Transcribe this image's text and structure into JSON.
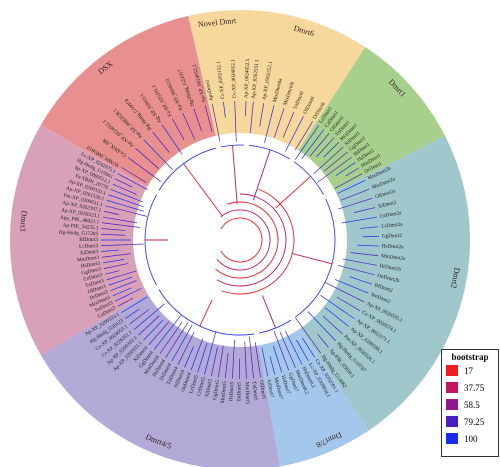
{
  "clades": [
    {
      "name": "DSX",
      "color": "#e8908f",
      "label_color": "#2a1f1f"
    },
    {
      "name": "Novel Dmrt",
      "color": "#f7d89c",
      "label_color": "#2a1f1f"
    },
    {
      "name": "Dmrt6",
      "color": "#f7d89c",
      "label_color": "#2a1f1f"
    },
    {
      "name": "Dmrt1",
      "color": "#a8d08d",
      "label_color": "#2a1f1f"
    },
    {
      "name": "Dmrt2",
      "color": "#9fc7cc",
      "label_color": "#2a1f1f"
    },
    {
      "name": "Dmrt7/8",
      "color": "#a4c8ec",
      "label_color": "#2a1f1f"
    },
    {
      "name": "Dmrt4/5",
      "color": "#b2a9d6",
      "label_color": "#2a1f1f"
    },
    {
      "name": "Dmrt3",
      "color": "#d9a1b8",
      "label_color": "#2a1f1f"
    }
  ],
  "leaf_groups": [
    [
      "SUMPI_0005810",
      "Ce-DSX_HR",
      "Ap-XP_0024052.1",
      "Ap-XP_0082028.1",
      "Hg-Hmlg_G19974",
      "Ag-XP_02063.1",
      "Fa-XP_025181.1",
      "Ap-XP_0028531",
      "Hg-Hmlg_G22317",
      "Ap-XP_0024052.2"
    ],
    [
      "ApsDmrt1",
      "Cr-XP_0263152.1",
      "Ce-XP_0024052.1",
      "Ap-XP_0024052.5"
    ],
    [
      "Ap-XP_0262551.1",
      "Ap-XP_0262552.1",
      "MixDmrt6a",
      "MixDmrt6b",
      "TnDmrt6",
      "OlDmrt6",
      "DrDmrt6"
    ],
    [
      "LcDmrt1",
      "CaDmrt1",
      "OlDmrt1",
      "TnDmrt1",
      "MixDmrt1",
      "XiDmrt1",
      "GgDmrt1",
      "ShDmrt1",
      "HsDmrt1",
      "MmDmrt1",
      "DrDmrt1"
    ],
    [
      "MixDmrt2b",
      "MixDmrt2a",
      "OlDmrt2a",
      "XiDmrt2",
      "CeDmrt2a",
      "LcDmrt2a",
      "GgDmrt2",
      "HsDmrt2a",
      "MmDmrt2a",
      "DrDmrt2b",
      "OnDmrt2b",
      "BfDmrt2",
      "SmDmrt2",
      "Ap-XP_0026595.1",
      "Ce-XP_0020574.1",
      "Ap-XP_0052171.1",
      "Ap-XP_0200598.1",
      "Pm-XP_0026526.1",
      "Hg-Hmlg_G10747",
      "Ap-PIK_05830.1",
      "Hg-Hmlg_G14862"
    ],
    [
      "Ce-XP_0202591.1",
      "Lc-XP_0209834.1",
      "HsDmrt8.2",
      "MmDmrt8.2",
      "GgDmrt7",
      "HsDmrt7",
      "MmDmrt7",
      "XiDmrt7"
    ],
    [
      "OlDmrt5",
      "TnDmrt5",
      "MixDmrt5",
      "DrDmrt5",
      "HsDmrt5",
      "MmDmrt5",
      "GgDmrt5",
      "XiDmrt5",
      "CeDmrt5",
      "LcDmrt5",
      "OnDmrt4",
      "OlDmrt4",
      "TnDmrt4",
      "DrDmrt4",
      "HsDmrt4",
      "MmDmrt4",
      "GgDmrt4",
      "XiDmrt4",
      "Ap-XP_0200331.1",
      "Ap-XP_0200332.1",
      "Cr-XP_0226351.1",
      "Ce-XP_0024053.1",
      "Hg-Hmlg_G20123",
      "Ap-XP_0200333.1"
    ],
    [
      "CaDmrt3",
      "SoDmrt3",
      "MixDmrt3",
      "DrDmrt3",
      "OlDmrt3",
      "TnDmrt3",
      "CeDmrt3",
      "GgDmrt3",
      "HsDmrt3",
      "MmDmrt3",
      "XiDmrt3",
      "LcDmrt3",
      "BfDmrt3",
      "Hg-Hmlg_G17285",
      "Ap-PIK_54235.1",
      "App_PIK_48021.1",
      "Ap-XP_0269523.1",
      "Ap-XP_0262397.1",
      "Pm-XP_0200631.1",
      "Ap-XP_0261550.1",
      "Ap-XP_0200332.1",
      "Fa-TRIN_20770",
      "Sp-XP_0809512.1",
      "Hg-Hmlg_G19961",
      "Lc-XP_0242975.1"
    ]
  ],
  "legend": {
    "title": "bootstrap",
    "items": [
      {
        "label": "17",
        "color": "#ee1d23"
      },
      {
        "label": "37.75",
        "color": "#c2185b"
      },
      {
        "label": "58.5",
        "color": "#8e1a8e"
      },
      {
        "label": "79.25",
        "color": "#4a1ec0"
      },
      {
        "label": "100",
        "color": "#1a2cf0"
      }
    ]
  }
}
